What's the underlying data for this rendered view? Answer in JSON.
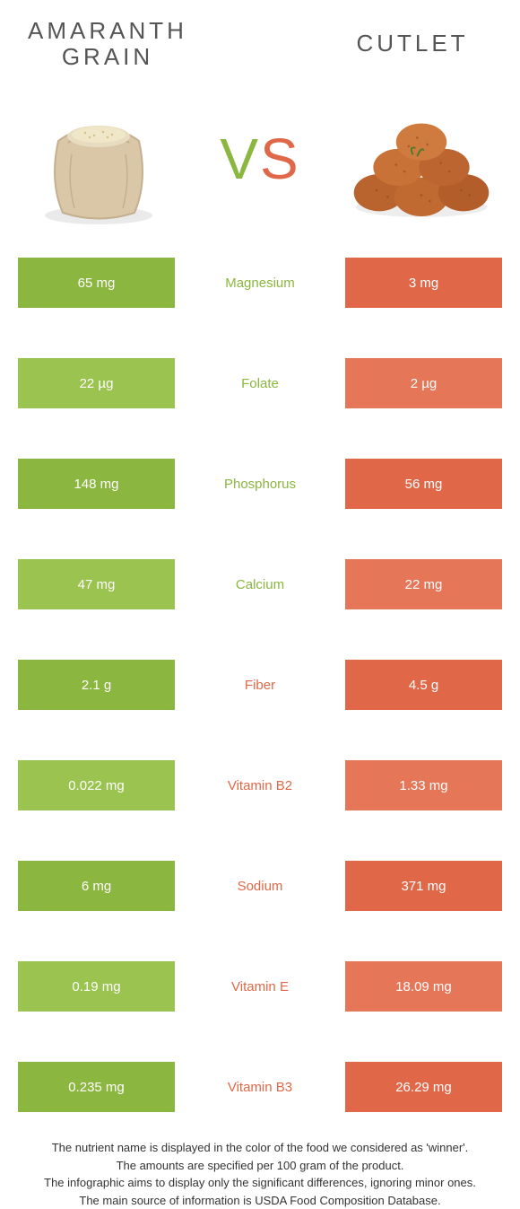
{
  "colors": {
    "left": "#8bb63f",
    "right": "#e06848",
    "left_alt": "#9bc34f",
    "right_alt": "#e57658",
    "background": "#ffffff",
    "text_dark": "#555555"
  },
  "left_food": {
    "title": "Amaranth\ngrain"
  },
  "right_food": {
    "title": "Cutlet"
  },
  "vs": {
    "v": "V",
    "s": "S"
  },
  "rows": [
    {
      "left": "65 mg",
      "label": "Magnesium",
      "right": "3 mg",
      "winner": "left"
    },
    {
      "left": "22 µg",
      "label": "Folate",
      "right": "2 µg",
      "winner": "left"
    },
    {
      "left": "148 mg",
      "label": "Phosphorus",
      "right": "56 mg",
      "winner": "left"
    },
    {
      "left": "47 mg",
      "label": "Calcium",
      "right": "22 mg",
      "winner": "left"
    },
    {
      "left": "2.1 g",
      "label": "Fiber",
      "right": "4.5 g",
      "winner": "right"
    },
    {
      "left": "0.022 mg",
      "label": "Vitamin B2",
      "right": "1.33 mg",
      "winner": "right"
    },
    {
      "left": "6 mg",
      "label": "Sodium",
      "right": "371 mg",
      "winner": "right"
    },
    {
      "left": "0.19 mg",
      "label": "Vitamin E",
      "right": "18.09 mg",
      "winner": "right"
    },
    {
      "left": "0.235 mg",
      "label": "Vitamin B3",
      "right": "26.29 mg",
      "winner": "right"
    }
  ],
  "footer": {
    "line1": "The nutrient name is displayed in the color of the food we considered as 'winner'.",
    "line2": "The amounts are specified per 100 gram of the product.",
    "line3": "The infographic aims to display only the significant differences, ignoring minor ones.",
    "line4": "The main source of information is USDA Food Composition Database."
  }
}
